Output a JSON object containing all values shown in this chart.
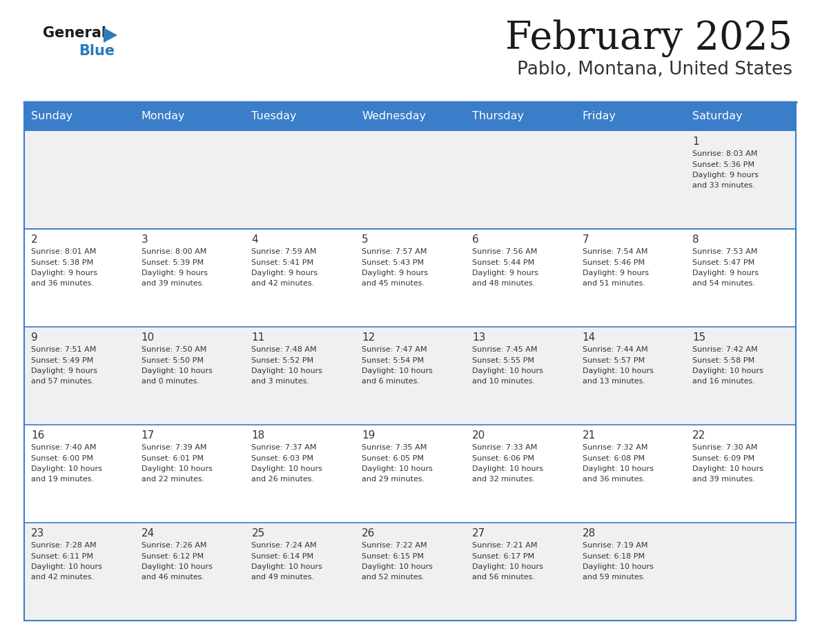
{
  "title": "February 2025",
  "subtitle": "Pablo, Montana, United States",
  "header_bg": "#3A7DC9",
  "header_text_color": "#FFFFFF",
  "cell_bg_odd": "#F0F0F0",
  "cell_bg_even": "#FFFFFF",
  "border_color": "#3A7DC9",
  "day_number_color": "#333333",
  "cell_text_color": "#333333",
  "days_of_week": [
    "Sunday",
    "Monday",
    "Tuesday",
    "Wednesday",
    "Thursday",
    "Friday",
    "Saturday"
  ],
  "calendar_data": [
    [
      null,
      null,
      null,
      null,
      null,
      null,
      {
        "day": "1",
        "sunrise": "8:03 AM",
        "sunset": "5:36 PM",
        "daylight": "9 hours",
        "daylight2": "and 33 minutes."
      }
    ],
    [
      {
        "day": "2",
        "sunrise": "8:01 AM",
        "sunset": "5:38 PM",
        "daylight": "9 hours",
        "daylight2": "and 36 minutes."
      },
      {
        "day": "3",
        "sunrise": "8:00 AM",
        "sunset": "5:39 PM",
        "daylight": "9 hours",
        "daylight2": "and 39 minutes."
      },
      {
        "day": "4",
        "sunrise": "7:59 AM",
        "sunset": "5:41 PM",
        "daylight": "9 hours",
        "daylight2": "and 42 minutes."
      },
      {
        "day": "5",
        "sunrise": "7:57 AM",
        "sunset": "5:43 PM",
        "daylight": "9 hours",
        "daylight2": "and 45 minutes."
      },
      {
        "day": "6",
        "sunrise": "7:56 AM",
        "sunset": "5:44 PM",
        "daylight": "9 hours",
        "daylight2": "and 48 minutes."
      },
      {
        "day": "7",
        "sunrise": "7:54 AM",
        "sunset": "5:46 PM",
        "daylight": "9 hours",
        "daylight2": "and 51 minutes."
      },
      {
        "day": "8",
        "sunrise": "7:53 AM",
        "sunset": "5:47 PM",
        "daylight": "9 hours",
        "daylight2": "and 54 minutes."
      }
    ],
    [
      {
        "day": "9",
        "sunrise": "7:51 AM",
        "sunset": "5:49 PM",
        "daylight": "9 hours",
        "daylight2": "and 57 minutes."
      },
      {
        "day": "10",
        "sunrise": "7:50 AM",
        "sunset": "5:50 PM",
        "daylight": "10 hours",
        "daylight2": "and 0 minutes."
      },
      {
        "day": "11",
        "sunrise": "7:48 AM",
        "sunset": "5:52 PM",
        "daylight": "10 hours",
        "daylight2": "and 3 minutes."
      },
      {
        "day": "12",
        "sunrise": "7:47 AM",
        "sunset": "5:54 PM",
        "daylight": "10 hours",
        "daylight2": "and 6 minutes."
      },
      {
        "day": "13",
        "sunrise": "7:45 AM",
        "sunset": "5:55 PM",
        "daylight": "10 hours",
        "daylight2": "and 10 minutes."
      },
      {
        "day": "14",
        "sunrise": "7:44 AM",
        "sunset": "5:57 PM",
        "daylight": "10 hours",
        "daylight2": "and 13 minutes."
      },
      {
        "day": "15",
        "sunrise": "7:42 AM",
        "sunset": "5:58 PM",
        "daylight": "10 hours",
        "daylight2": "and 16 minutes."
      }
    ],
    [
      {
        "day": "16",
        "sunrise": "7:40 AM",
        "sunset": "6:00 PM",
        "daylight": "10 hours",
        "daylight2": "and 19 minutes."
      },
      {
        "day": "17",
        "sunrise": "7:39 AM",
        "sunset": "6:01 PM",
        "daylight": "10 hours",
        "daylight2": "and 22 minutes."
      },
      {
        "day": "18",
        "sunrise": "7:37 AM",
        "sunset": "6:03 PM",
        "daylight": "10 hours",
        "daylight2": "and 26 minutes."
      },
      {
        "day": "19",
        "sunrise": "7:35 AM",
        "sunset": "6:05 PM",
        "daylight": "10 hours",
        "daylight2": "and 29 minutes."
      },
      {
        "day": "20",
        "sunrise": "7:33 AM",
        "sunset": "6:06 PM",
        "daylight": "10 hours",
        "daylight2": "and 32 minutes."
      },
      {
        "day": "21",
        "sunrise": "7:32 AM",
        "sunset": "6:08 PM",
        "daylight": "10 hours",
        "daylight2": "and 36 minutes."
      },
      {
        "day": "22",
        "sunrise": "7:30 AM",
        "sunset": "6:09 PM",
        "daylight": "10 hours",
        "daylight2": "and 39 minutes."
      }
    ],
    [
      {
        "day": "23",
        "sunrise": "7:28 AM",
        "sunset": "6:11 PM",
        "daylight": "10 hours",
        "daylight2": "and 42 minutes."
      },
      {
        "day": "24",
        "sunrise": "7:26 AM",
        "sunset": "6:12 PM",
        "daylight": "10 hours",
        "daylight2": "and 46 minutes."
      },
      {
        "day": "25",
        "sunrise": "7:24 AM",
        "sunset": "6:14 PM",
        "daylight": "10 hours",
        "daylight2": "and 49 minutes."
      },
      {
        "day": "26",
        "sunrise": "7:22 AM",
        "sunset": "6:15 PM",
        "daylight": "10 hours",
        "daylight2": "and 52 minutes."
      },
      {
        "day": "27",
        "sunrise": "7:21 AM",
        "sunset": "6:17 PM",
        "daylight": "10 hours",
        "daylight2": "and 56 minutes."
      },
      {
        "day": "28",
        "sunrise": "7:19 AM",
        "sunset": "6:18 PM",
        "daylight": "10 hours",
        "daylight2": "and 59 minutes."
      },
      null
    ]
  ],
  "logo_general_color": "#1a1a1a",
  "logo_blue_color": "#2B7BB9",
  "title_color": "#1a1a1a",
  "subtitle_color": "#333333",
  "fig_width": 11.88,
  "fig_height": 9.18,
  "dpi": 100
}
